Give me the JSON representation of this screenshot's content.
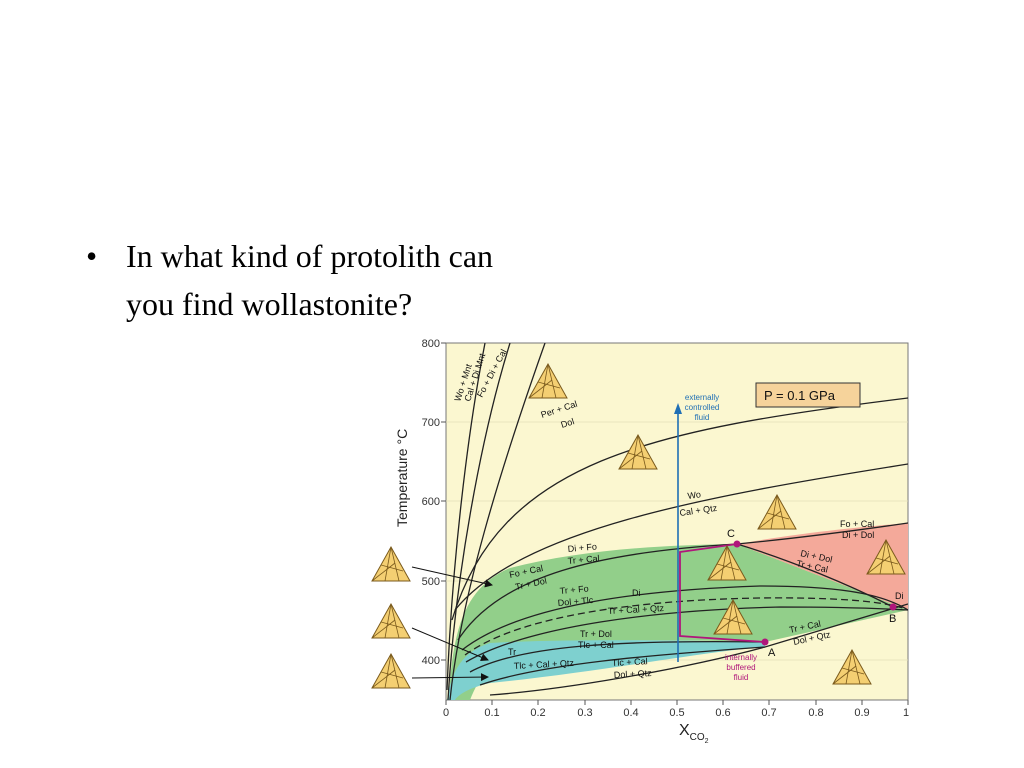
{
  "slide": {
    "bullet_marker": "•",
    "question": "In what kind of protolith can you find wollastonite?"
  },
  "diagram": {
    "pressure_label": "P = 0.1 GPa",
    "y_axis_label": "Temperature °C",
    "x_axis_label_main": "X",
    "x_axis_label_sub": "CO",
    "x_axis_label_subsub": "2",
    "x_ticks": [
      "0",
      "0.1",
      "0.2",
      "0.3",
      "0.4",
      "0.5",
      "0.6",
      "0.7",
      "0.8",
      "0.9",
      "1"
    ],
    "y_ticks": [
      "400",
      "500",
      "600",
      "700",
      "800"
    ],
    "reactions": {
      "wo_mnt": "Wo + Mnt",
      "cal_di_mnt": "Cal + Di  Mnt",
      "fo_di_cal": "Fo + Di + Cal",
      "per_cal": "Per + Cal",
      "dol": "Dol",
      "wo": "Wo",
      "cal_qtz": "Cal + Qtz",
      "di_fo": "Di + Fo",
      "tr_cal_1": "Tr + Cal",
      "fo_cal_left": "Fo + Cal",
      "tr_dol_left": "Tr + Dol",
      "tr_fo": "Tr + Fo",
      "dol_tlc": "Dol + Tlc",
      "di_mid": "Di",
      "tr_cal_qtz": "Tr + Cal + Qtz",
      "tr_dol": "Tr + Dol",
      "tlc_cal": "Tlc + Cal",
      "tr": "Tr",
      "tlc_cal_qtz": "Tlc + Cal + Qtz",
      "tlc_cal_2": "Tlc + Cal",
      "dol_qtz": "Dol + Qtz",
      "fo_cal_right": "Fo + Cal",
      "di_dol_right": "Di + Dol",
      "di_dol": "Di + Dol",
      "tr_cal_2": "Tr + Cal",
      "tr_cal_3": "Tr + Cal",
      "dol_qtz_2": "Dol + Qtz",
      "di_right": "Di"
    },
    "points": {
      "a": "A",
      "b": "B",
      "c": "C"
    },
    "fluid_labels": {
      "external_1": "externally",
      "external_2": "controlled",
      "external_3": "fluid",
      "internal_1": "internally",
      "internal_2": "buffered",
      "internal_3": "fluid"
    },
    "colors": {
      "background": "#fbf7d0",
      "green_field": "#92cf8a",
      "cyan_field": "#7ed0cf",
      "red_field": "#f4a99a",
      "buffered_path": "#b0167b",
      "external_path": "#1f6fb5",
      "triangle_fill": "#f4cf72"
    }
  }
}
